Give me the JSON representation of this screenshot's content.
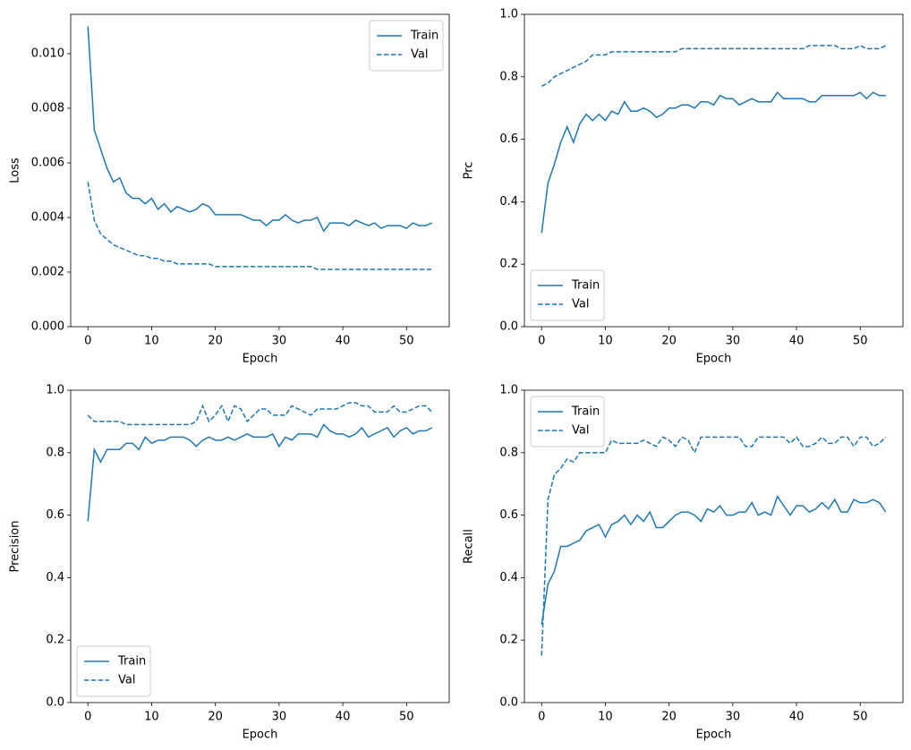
{
  "chart_data": [
    {
      "type": "line",
      "xlabel": "Epoch",
      "ylabel": "Loss",
      "legend": "upper right",
      "x": [
        0,
        1,
        2,
        3,
        4,
        5,
        6,
        7,
        8,
        9,
        10,
        11,
        12,
        13,
        14,
        15,
        16,
        17,
        18,
        19,
        20,
        21,
        22,
        23,
        24,
        25,
        26,
        27,
        28,
        29,
        30,
        31,
        32,
        33,
        34,
        35,
        36,
        37,
        38,
        39,
        40,
        41,
        42,
        43,
        44,
        45,
        46,
        47,
        48,
        49,
        50,
        51,
        52,
        53,
        54
      ],
      "xlim": [
        -2.7,
        56.7
      ],
      "xticks": [
        0,
        10,
        20,
        30,
        40,
        50
      ],
      "ylim": [
        0,
        0.01144
      ],
      "yticks": [
        {
          "value": 0,
          "label": "0.000"
        },
        {
          "value": 0.002,
          "label": "0.002"
        },
        {
          "value": 0.004,
          "label": "0.004"
        },
        {
          "value": 0.006,
          "label": "0.006"
        },
        {
          "value": 0.008,
          "label": "0.008"
        },
        {
          "value": 0.01,
          "label": "0.010"
        }
      ],
      "series": [
        {
          "name": "Train",
          "color": "#1f77b4",
          "linestyle": "solid",
          "values": [
            0.011,
            0.0072,
            0.0065,
            0.0058,
            0.0053,
            0.00545,
            0.0049,
            0.0047,
            0.0047,
            0.0045,
            0.0047,
            0.0043,
            0.0045,
            0.0042,
            0.0044,
            0.0043,
            0.0042,
            0.0043,
            0.0045,
            0.0044,
            0.0041,
            0.0041,
            0.0041,
            0.0041,
            0.0041,
            0.004,
            0.0039,
            0.0039,
            0.0037,
            0.0039,
            0.0039,
            0.0041,
            0.0039,
            0.0038,
            0.0039,
            0.0039,
            0.004,
            0.0035,
            0.0038,
            0.0038,
            0.0038,
            0.0037,
            0.0039,
            0.0038,
            0.0037,
            0.0038,
            0.0036,
            0.0037,
            0.0037,
            0.0037,
            0.0036,
            0.0038,
            0.0037,
            0.0037,
            0.0038
          ]
        },
        {
          "name": "Val",
          "color": "#1f77b4",
          "linestyle": "dashed",
          "values": [
            0.0053,
            0.0039,
            0.0034,
            0.0032,
            0.003,
            0.0029,
            0.0028,
            0.0027,
            0.0026,
            0.0026,
            0.0025,
            0.0025,
            0.0024,
            0.0024,
            0.0023,
            0.0023,
            0.0023,
            0.0023,
            0.0023,
            0.0023,
            0.0022,
            0.0022,
            0.0022,
            0.0022,
            0.0022,
            0.0022,
            0.0022,
            0.0022,
            0.0022,
            0.0022,
            0.0022,
            0.0022,
            0.0022,
            0.0022,
            0.0022,
            0.0022,
            0.0021,
            0.0021,
            0.0021,
            0.0021,
            0.0021,
            0.0021,
            0.0021,
            0.0021,
            0.0021,
            0.0021,
            0.0021,
            0.0021,
            0.0021,
            0.0021,
            0.0021,
            0.0021,
            0.0021,
            0.0021,
            0.0021
          ]
        }
      ]
    },
    {
      "type": "line",
      "xlabel": "Epoch",
      "ylabel": "Prc",
      "legend": "lower left",
      "x": [
        0,
        1,
        2,
        3,
        4,
        5,
        6,
        7,
        8,
        9,
        10,
        11,
        12,
        13,
        14,
        15,
        16,
        17,
        18,
        19,
        20,
        21,
        22,
        23,
        24,
        25,
        26,
        27,
        28,
        29,
        30,
        31,
        32,
        33,
        34,
        35,
        36,
        37,
        38,
        39,
        40,
        41,
        42,
        43,
        44,
        45,
        46,
        47,
        48,
        49,
        50,
        51,
        52,
        53,
        54
      ],
      "xlim": [
        -2.7,
        56.7
      ],
      "xticks": [
        0,
        10,
        20,
        30,
        40,
        50
      ],
      "ylim": [
        0,
        1
      ],
      "yticks": [
        {
          "value": 0,
          "label": "0.0"
        },
        0.2,
        0.4,
        0.6,
        0.8,
        {
          "value": 1,
          "label": "1.0"
        }
      ],
      "series": [
        {
          "name": "Train",
          "color": "#1f77b4",
          "linestyle": "solid",
          "values": [
            0.3,
            0.46,
            0.52,
            0.59,
            0.64,
            0.59,
            0.65,
            0.68,
            0.66,
            0.68,
            0.66,
            0.69,
            0.68,
            0.72,
            0.69,
            0.69,
            0.7,
            0.69,
            0.67,
            0.68,
            0.7,
            0.7,
            0.71,
            0.71,
            0.7,
            0.72,
            0.72,
            0.71,
            0.74,
            0.73,
            0.73,
            0.71,
            0.72,
            0.73,
            0.72,
            0.72,
            0.72,
            0.75,
            0.73,
            0.73,
            0.73,
            0.73,
            0.72,
            0.72,
            0.74,
            0.74,
            0.74,
            0.74,
            0.74,
            0.74,
            0.75,
            0.73,
            0.75,
            0.74,
            0.74
          ]
        },
        {
          "name": "Val",
          "color": "#1f77b4",
          "linestyle": "dashed",
          "values": [
            0.77,
            0.78,
            0.8,
            0.81,
            0.82,
            0.83,
            0.84,
            0.85,
            0.87,
            0.87,
            0.87,
            0.88,
            0.88,
            0.88,
            0.88,
            0.88,
            0.88,
            0.88,
            0.88,
            0.88,
            0.88,
            0.88,
            0.89,
            0.89,
            0.89,
            0.89,
            0.89,
            0.89,
            0.89,
            0.89,
            0.89,
            0.89,
            0.89,
            0.89,
            0.89,
            0.89,
            0.89,
            0.89,
            0.89,
            0.89,
            0.89,
            0.89,
            0.9,
            0.9,
            0.9,
            0.9,
            0.9,
            0.89,
            0.89,
            0.89,
            0.9,
            0.89,
            0.89,
            0.89,
            0.9
          ]
        }
      ]
    },
    {
      "type": "line",
      "xlabel": "Epoch",
      "ylabel": "Precision",
      "legend": "lower left",
      "x": [
        0,
        1,
        2,
        3,
        4,
        5,
        6,
        7,
        8,
        9,
        10,
        11,
        12,
        13,
        14,
        15,
        16,
        17,
        18,
        19,
        20,
        21,
        22,
        23,
        24,
        25,
        26,
        27,
        28,
        29,
        30,
        31,
        32,
        33,
        34,
        35,
        36,
        37,
        38,
        39,
        40,
        41,
        42,
        43,
        44,
        45,
        46,
        47,
        48,
        49,
        50,
        51,
        52,
        53,
        54
      ],
      "xlim": [
        -2.7,
        56.7
      ],
      "xticks": [
        0,
        10,
        20,
        30,
        40,
        50
      ],
      "ylim": [
        0,
        1
      ],
      "yticks": [
        {
          "value": 0,
          "label": "0.0"
        },
        0.2,
        0.4,
        0.6,
        0.8,
        {
          "value": 1,
          "label": "1.0"
        }
      ],
      "series": [
        {
          "name": "Train",
          "color": "#1f77b4",
          "linestyle": "solid",
          "values": [
            0.58,
            0.81,
            0.77,
            0.81,
            0.81,
            0.81,
            0.83,
            0.83,
            0.81,
            0.85,
            0.83,
            0.84,
            0.84,
            0.85,
            0.85,
            0.85,
            0.84,
            0.82,
            0.84,
            0.85,
            0.84,
            0.84,
            0.85,
            0.84,
            0.85,
            0.86,
            0.85,
            0.85,
            0.85,
            0.86,
            0.82,
            0.85,
            0.84,
            0.86,
            0.86,
            0.86,
            0.85,
            0.89,
            0.87,
            0.86,
            0.86,
            0.85,
            0.86,
            0.88,
            0.85,
            0.86,
            0.87,
            0.88,
            0.85,
            0.87,
            0.88,
            0.86,
            0.87,
            0.87,
            0.88
          ]
        },
        {
          "name": "Val",
          "color": "#1f77b4",
          "linestyle": "dashed",
          "values": [
            0.92,
            0.9,
            0.9,
            0.9,
            0.9,
            0.9,
            0.89,
            0.89,
            0.89,
            0.89,
            0.89,
            0.89,
            0.89,
            0.89,
            0.89,
            0.89,
            0.89,
            0.9,
            0.95,
            0.9,
            0.92,
            0.95,
            0.9,
            0.95,
            0.94,
            0.9,
            0.92,
            0.94,
            0.94,
            0.92,
            0.92,
            0.92,
            0.95,
            0.94,
            0.93,
            0.92,
            0.94,
            0.94,
            0.94,
            0.94,
            0.95,
            0.96,
            0.96,
            0.95,
            0.95,
            0.93,
            0.93,
            0.93,
            0.95,
            0.93,
            0.93,
            0.94,
            0.95,
            0.95,
            0.93
          ]
        }
      ]
    },
    {
      "type": "line",
      "xlabel": "Epoch",
      "ylabel": "Recall",
      "legend": "upper left",
      "x": [
        0,
        1,
        2,
        3,
        4,
        5,
        6,
        7,
        8,
        9,
        10,
        11,
        12,
        13,
        14,
        15,
        16,
        17,
        18,
        19,
        20,
        21,
        22,
        23,
        24,
        25,
        26,
        27,
        28,
        29,
        30,
        31,
        32,
        33,
        34,
        35,
        36,
        37,
        38,
        39,
        40,
        41,
        42,
        43,
        44,
        45,
        46,
        47,
        48,
        49,
        50,
        51,
        52,
        53,
        54
      ],
      "xlim": [
        -2.7,
        56.7
      ],
      "xticks": [
        0,
        10,
        20,
        30,
        40,
        50
      ],
      "ylim": [
        0,
        1
      ],
      "yticks": [
        {
          "value": 0,
          "label": "0.0"
        },
        0.2,
        0.4,
        0.6,
        0.8,
        {
          "value": 1,
          "label": "1.0"
        }
      ],
      "series": [
        {
          "name": "Train",
          "color": "#1f77b4",
          "linestyle": "solid",
          "values": [
            0.25,
            0.38,
            0.42,
            0.5,
            0.5,
            0.51,
            0.52,
            0.55,
            0.56,
            0.57,
            0.53,
            0.57,
            0.58,
            0.6,
            0.57,
            0.6,
            0.58,
            0.61,
            0.56,
            0.56,
            0.58,
            0.6,
            0.61,
            0.61,
            0.6,
            0.58,
            0.62,
            0.61,
            0.63,
            0.6,
            0.6,
            0.61,
            0.61,
            0.64,
            0.6,
            0.61,
            0.6,
            0.66,
            0.63,
            0.6,
            0.63,
            0.63,
            0.61,
            0.62,
            0.64,
            0.62,
            0.65,
            0.61,
            0.61,
            0.65,
            0.64,
            0.64,
            0.65,
            0.64,
            0.61
          ]
        },
        {
          "name": "Val",
          "color": "#1f77b4",
          "linestyle": "dashed",
          "values": [
            0.15,
            0.65,
            0.73,
            0.75,
            0.78,
            0.77,
            0.8,
            0.8,
            0.8,
            0.8,
            0.8,
            0.84,
            0.83,
            0.83,
            0.83,
            0.83,
            0.84,
            0.83,
            0.82,
            0.85,
            0.84,
            0.82,
            0.85,
            0.84,
            0.8,
            0.85,
            0.85,
            0.85,
            0.85,
            0.85,
            0.85,
            0.85,
            0.82,
            0.82,
            0.85,
            0.85,
            0.85,
            0.85,
            0.85,
            0.83,
            0.85,
            0.82,
            0.82,
            0.83,
            0.85,
            0.83,
            0.83,
            0.85,
            0.85,
            0.82,
            0.85,
            0.85,
            0.82,
            0.83,
            0.85
          ]
        }
      ]
    }
  ]
}
